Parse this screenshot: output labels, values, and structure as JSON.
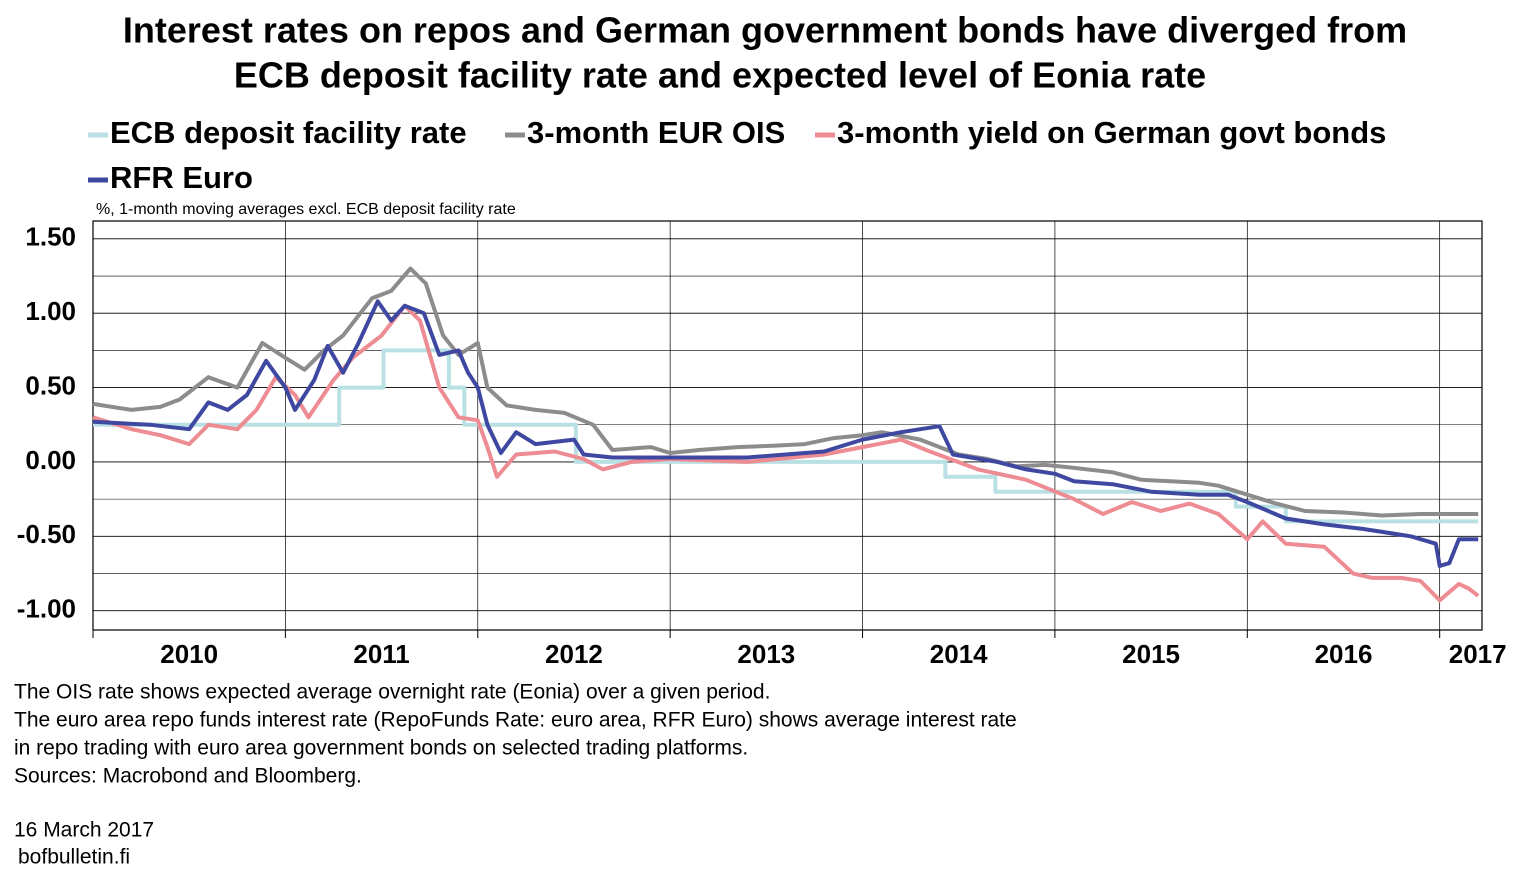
{
  "chart_data": {
    "type": "line",
    "title": [
      "Interest rates on repos and German government bonds have diverged from",
      "ECB deposit facility rate and expected level of Eonia rate"
    ],
    "subtitle": "%, 1-month moving averages excl. ECB deposit facility rate",
    "notes": [
      "The OIS rate shows expected average overnight rate (Eonia) over a given period.",
      "The euro area repo funds interest rate (RepoFunds Rate: euro area, RFR Euro) shows average interest rate",
      "in repo trading with euro area government bonds on selected trading platforms.",
      "Sources: Macrobond and Bloomberg."
    ],
    "date": "16 March 2017",
    "source": "bofbulletin.fi",
    "xlim": [
      2010,
      2017.22
    ],
    "xticks": [
      2010,
      2011,
      2012,
      2013,
      2014,
      2015,
      2016,
      2017
    ],
    "ylim": [
      -1.13,
      1.62
    ],
    "yticks": [
      {
        "value": -1,
        "label": "-1.00"
      },
      {
        "value": -0.5,
        "label": "-0.50"
      },
      {
        "value": 0,
        "label": "0.00"
      },
      {
        "value": 0.5,
        "label": "0.50"
      },
      {
        "value": 1,
        "label": "1.00"
      },
      {
        "value": 1.5,
        "label": "1.50"
      }
    ],
    "yminorticks": [
      -0.75,
      -0.25,
      0.25,
      0.75,
      1.25
    ],
    "grid": true,
    "legend": "top",
    "series": [
      {
        "name": "ECB deposit facility rate",
        "color": "#b9e1e4",
        "x": [
          2010.0,
          2011.28,
          2011.28,
          2011.51,
          2011.51,
          2011.85,
          2011.85,
          2011.93,
          2011.93,
          2012.51,
          2012.51,
          2014.43,
          2014.43,
          2014.69,
          2014.69,
          2015.94,
          2015.94,
          2016.2,
          2016.2,
          2017.2
        ],
        "values": [
          0.25,
          0.25,
          0.5,
          0.5,
          0.75,
          0.75,
          0.5,
          0.5,
          0.25,
          0.25,
          0,
          0,
          -0.1,
          -0.1,
          -0.2,
          -0.2,
          -0.3,
          -0.3,
          -0.4,
          -0.4
        ]
      },
      {
        "name": "3-month EUR OIS",
        "color": "#8c8c8c",
        "x": [
          2010.0,
          2010.2,
          2010.35,
          2010.45,
          2010.6,
          2010.75,
          2010.88,
          2011.0,
          2011.1,
          2011.2,
          2011.3,
          2011.45,
          2011.55,
          2011.65,
          2011.73,
          2011.82,
          2011.9,
          2012.0,
          2012.05,
          2012.15,
          2012.3,
          2012.45,
          2012.6,
          2012.7,
          2012.9,
          2013.0,
          2013.15,
          2013.35,
          2013.55,
          2013.7,
          2013.85,
          2014.0,
          2014.1,
          2014.3,
          2014.5,
          2014.65,
          2014.8,
          2014.95,
          2015.1,
          2015.3,
          2015.45,
          2015.6,
          2015.75,
          2015.85,
          2016.0,
          2016.15,
          2016.3,
          2016.5,
          2016.7,
          2016.9,
          2017.2
        ],
        "values": [
          0.39,
          0.35,
          0.37,
          0.42,
          0.57,
          0.5,
          0.8,
          0.7,
          0.62,
          0.75,
          0.85,
          1.1,
          1.15,
          1.3,
          1.2,
          0.85,
          0.72,
          0.8,
          0.5,
          0.38,
          0.35,
          0.33,
          0.25,
          0.08,
          0.1,
          0.06,
          0.08,
          0.1,
          0.11,
          0.12,
          0.16,
          0.18,
          0.2,
          0.15,
          0.05,
          0.02,
          -0.03,
          -0.02,
          -0.04,
          -0.07,
          -0.12,
          -0.13,
          -0.14,
          -0.16,
          -0.22,
          -0.28,
          -0.33,
          -0.34,
          -0.36,
          -0.35,
          -0.35
        ]
      },
      {
        "name": "3-month yield on German govt bonds",
        "color": "#ee8c93",
        "x": [
          2010.0,
          2010.2,
          2010.35,
          2010.5,
          2010.6,
          2010.75,
          2010.85,
          2010.95,
          2011.05,
          2011.12,
          2011.25,
          2011.35,
          2011.5,
          2011.62,
          2011.7,
          2011.8,
          2011.9,
          2012.0,
          2012.05,
          2012.1,
          2012.2,
          2012.4,
          2012.55,
          2012.65,
          2012.8,
          2013.0,
          2013.4,
          2013.8,
          2014.0,
          2014.2,
          2014.35,
          2014.6,
          2014.85,
          2015.1,
          2015.25,
          2015.4,
          2015.55,
          2015.7,
          2015.85,
          2016.0,
          2016.08,
          2016.2,
          2016.4,
          2016.55,
          2016.65,
          2016.8,
          2016.9,
          2017.0,
          2017.1,
          2017.15,
          2017.2
        ],
        "values": [
          0.3,
          0.22,
          0.18,
          0.12,
          0.25,
          0.22,
          0.35,
          0.57,
          0.45,
          0.3,
          0.55,
          0.7,
          0.85,
          1.05,
          0.95,
          0.5,
          0.3,
          0.28,
          0.1,
          -0.1,
          0.05,
          0.07,
          0.02,
          -0.05,
          0.0,
          0.02,
          0.0,
          0.05,
          0.1,
          0.15,
          0.07,
          -0.05,
          -0.12,
          -0.25,
          -0.35,
          -0.27,
          -0.33,
          -0.28,
          -0.35,
          -0.52,
          -0.4,
          -0.55,
          -0.57,
          -0.75,
          -0.78,
          -0.78,
          -0.8,
          -0.93,
          -0.82,
          -0.85,
          -0.9
        ]
      },
      {
        "name": "RFR Euro",
        "color": "#3f48a0",
        "x": [
          2010.0,
          2010.3,
          2010.5,
          2010.6,
          2010.7,
          2010.8,
          2010.9,
          2011.0,
          2011.05,
          2011.15,
          2011.22,
          2011.3,
          2011.38,
          2011.48,
          2011.55,
          2011.62,
          2011.72,
          2011.8,
          2011.9,
          2011.95,
          2012.0,
          2012.05,
          2012.12,
          2012.2,
          2012.3,
          2012.5,
          2012.55,
          2012.7,
          2013.0,
          2013.4,
          2013.8,
          2014.0,
          2014.2,
          2014.4,
          2014.47,
          2014.7,
          2014.85,
          2015.0,
          2015.1,
          2015.3,
          2015.5,
          2015.75,
          2015.9,
          2016.0,
          2016.2,
          2016.4,
          2016.6,
          2016.85,
          2016.98,
          2017.0,
          2017.05,
          2017.1,
          2017.2
        ],
        "values": [
          0.27,
          0.25,
          0.22,
          0.4,
          0.35,
          0.45,
          0.68,
          0.5,
          0.35,
          0.55,
          0.78,
          0.6,
          0.8,
          1.08,
          0.95,
          1.05,
          1.0,
          0.72,
          0.75,
          0.6,
          0.5,
          0.25,
          0.06,
          0.2,
          0.12,
          0.15,
          0.05,
          0.03,
          0.03,
          0.03,
          0.07,
          0.15,
          0.2,
          0.24,
          0.05,
          0.0,
          -0.05,
          -0.08,
          -0.13,
          -0.15,
          -0.2,
          -0.22,
          -0.22,
          -0.27,
          -0.38,
          -0.42,
          -0.45,
          -0.5,
          -0.55,
          -0.7,
          -0.68,
          -0.52,
          -0.52
        ]
      }
    ]
  }
}
